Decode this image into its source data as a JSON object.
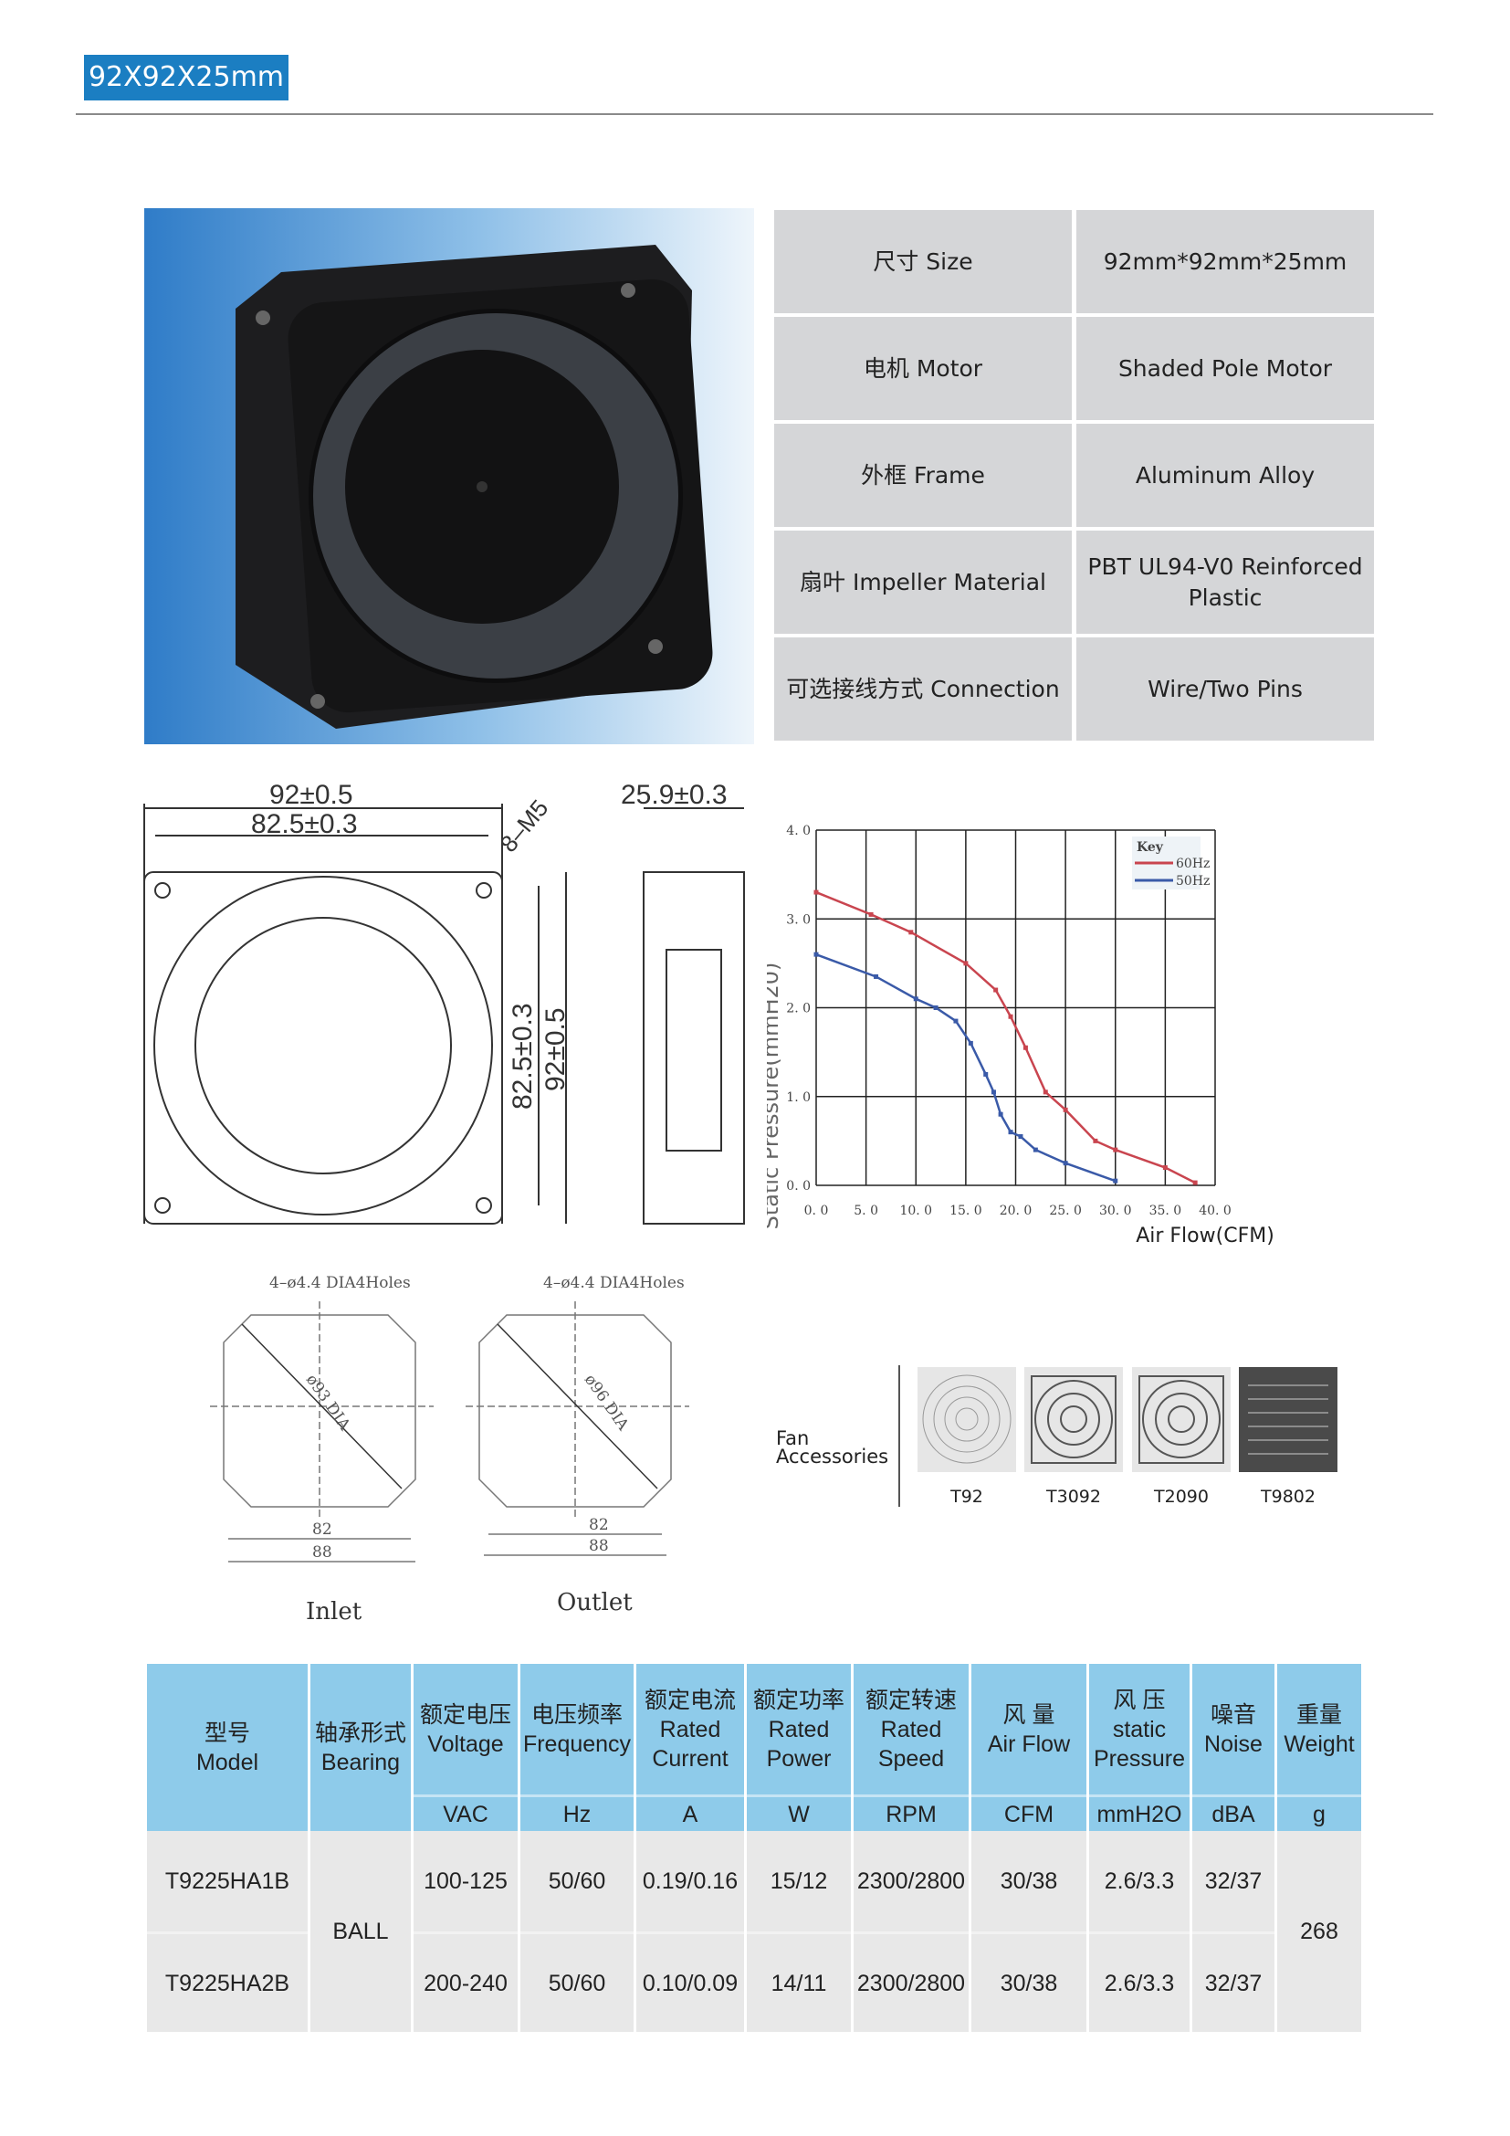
{
  "title": "92X92X25mm",
  "specs": [
    {
      "label": "尺寸 Size",
      "value": "92mm*92mm*25mm"
    },
    {
      "label": "电机 Motor",
      "value": "Shaded  Pole  Motor"
    },
    {
      "label": "外框  Frame",
      "value": "Aluminum Alloy"
    },
    {
      "label": "扇叶  Impeller  Material",
      "value": "PBT  UL94-V0 Reinforced Plastic"
    },
    {
      "label": "可选接线方式 Connection",
      "value": "Wire/Two  Pins"
    }
  ],
  "drawing": {
    "dim_width": "92±0.5",
    "dim_hole": "82.5±0.3",
    "dim_screw": "8–M5",
    "dim_depth": "25.9±0.3",
    "dim_v_hole": "82.5±0.3",
    "dim_v_width": "92±0.5",
    "inlet": {
      "holes": "4–ø4.4 DIA4Holes",
      "dia": "ø93 DIA",
      "d82": "82",
      "d88": "88",
      "label": "Inlet"
    },
    "outlet": {
      "holes": "4–ø4.4 DIA4Holes",
      "dia": "ø96 DIA",
      "d82": "82",
      "d88": "88",
      "label": "Outlet"
    }
  },
  "chart_data": {
    "type": "line",
    "xlabel": "Air Flow(CFM)",
    "ylabel": "Static  Pressure(mmH20)",
    "xlim": [
      0,
      40
    ],
    "ylim": [
      0,
      4
    ],
    "xticks": [
      "0. 0",
      "5. 0",
      "10. 0",
      "15. 0",
      "20. 0",
      "25. 0",
      "30. 0",
      "35. 0",
      "40. 0"
    ],
    "yticks": [
      "0. 0",
      "1. 0",
      "2. 0",
      "3. 0",
      "4. 0"
    ],
    "grid": true,
    "legend_title": "Key",
    "legend_placement": "top-right",
    "series": [
      {
        "name": "60Hz",
        "color": "#c9454f",
        "x": [
          0,
          5.5,
          9.5,
          15,
          18,
          19.5,
          21,
          23,
          25,
          28,
          30,
          35,
          38
        ],
        "y": [
          3.3,
          3.05,
          2.85,
          2.5,
          2.2,
          1.9,
          1.55,
          1.05,
          0.85,
          0.5,
          0.4,
          0.2,
          0.03
        ]
      },
      {
        "name": "50Hz",
        "color": "#3a5aa8",
        "x": [
          0,
          6,
          10,
          12,
          14,
          15.5,
          17,
          17.8,
          18.5,
          19.5,
          20.5,
          22,
          25,
          30
        ],
        "y": [
          2.6,
          2.35,
          2.1,
          2.0,
          1.85,
          1.6,
          1.25,
          1.05,
          0.8,
          0.6,
          0.55,
          0.4,
          0.25,
          0.05
        ]
      }
    ]
  },
  "accessories": {
    "label": "Fan Accessories",
    "items": [
      "T92",
      "T3092",
      "T2090",
      "T9802"
    ]
  },
  "table": {
    "headers": [
      [
        "型号",
        "Model"
      ],
      [
        "轴承形式",
        "Bearing"
      ],
      [
        "额定电压",
        "Voltage"
      ],
      [
        "电压频率",
        "Frequency"
      ],
      [
        "额定电流",
        "Rated",
        "Current"
      ],
      [
        "额定功率",
        "Rated",
        "Power"
      ],
      [
        "额定转速",
        "Rated",
        "Speed"
      ],
      [
        "风  量",
        "Air Flow"
      ],
      [
        "风  压",
        "static",
        "Pressure"
      ],
      [
        "噪音",
        "Noise"
      ],
      [
        "重量",
        "Weight"
      ]
    ],
    "units": [
      "VAC",
      "Hz",
      "A",
      "W",
      "RPM",
      "CFM",
      "mmH2O",
      "dBA",
      "g"
    ],
    "bearing": "BALL",
    "weight": "268",
    "rows": [
      [
        "T9225HA1B",
        "100-125",
        "50/60",
        "0.19/0.16",
        "15/12",
        "2300/2800",
        "30/38",
        "2.6/3.3",
        "32/37"
      ],
      [
        "T9225HA2B",
        "200-240",
        "50/60",
        "0.10/0.09",
        "14/11",
        "2300/2800",
        "30/38",
        "2.6/3.3",
        "32/37"
      ]
    ]
  }
}
